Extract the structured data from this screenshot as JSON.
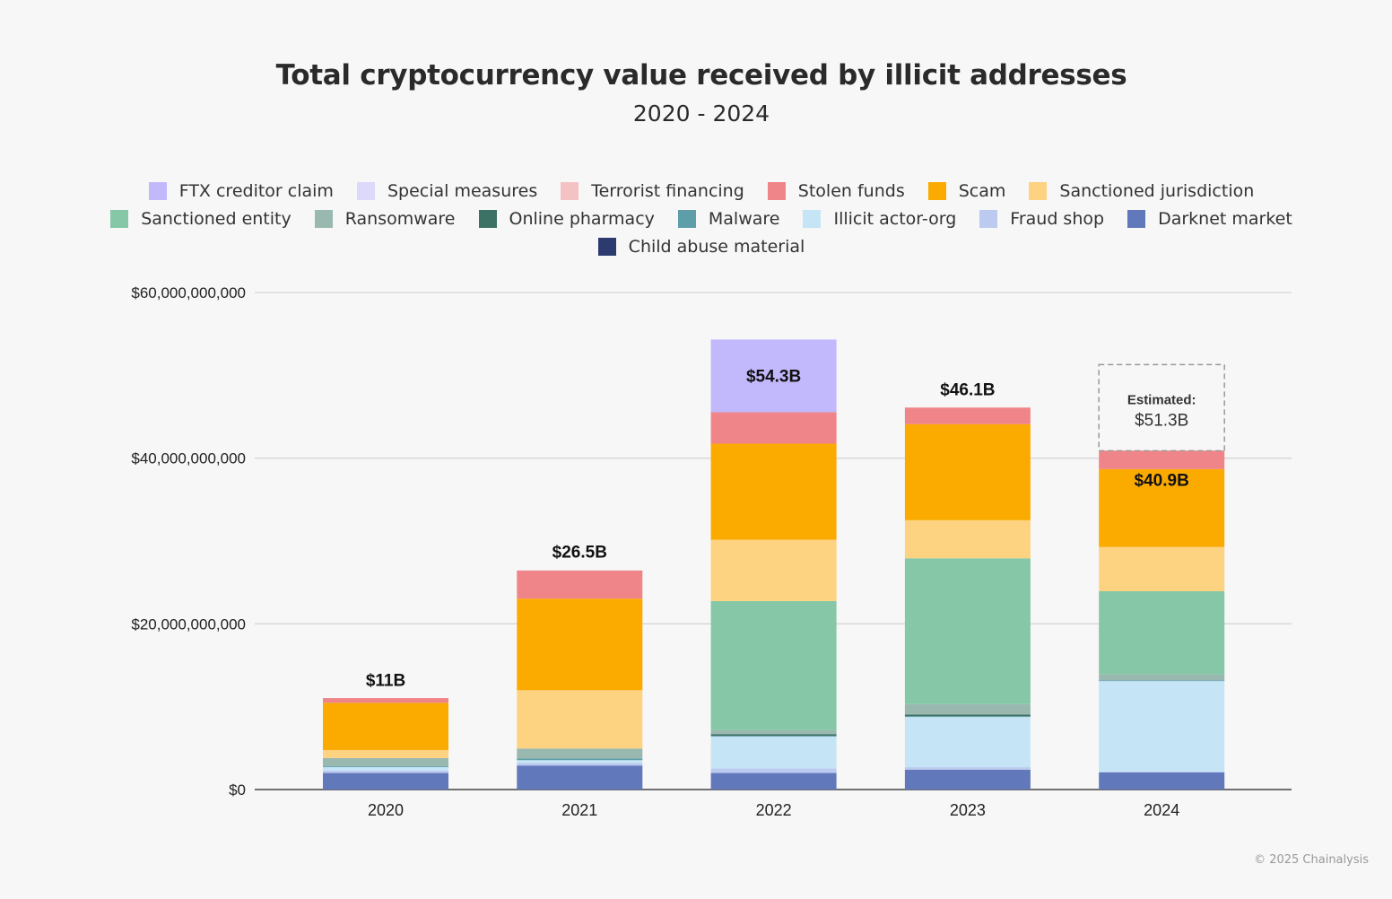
{
  "chart_data": {
    "type": "bar",
    "stacked": true,
    "title": "Total cryptocurrency value received by illicit addresses",
    "subtitle": "2020 - 2024",
    "xlabel": "",
    "ylabel": "",
    "ylim": [
      0,
      60000000000
    ],
    "yticks": [
      "$0",
      "$20,000,000,000",
      "$40,000,000,000",
      "$60,000,000,000"
    ],
    "ytick_values": [
      0,
      20000000000,
      40000000000,
      60000000000
    ],
    "grid": true,
    "legend_position": "top",
    "categories": [
      "2020",
      "2021",
      "2022",
      "2023",
      "2024"
    ],
    "units": "USD billions",
    "series": [
      {
        "name": "Darknet market",
        "color": "#6178bb",
        "values": [
          2.0,
          2.9,
          2.0,
          2.4,
          2.06
        ]
      },
      {
        "name": "Fraud shop",
        "color": "#bccaef",
        "values": [
          0.3,
          0.3,
          0.54,
          0.3,
          0.1
        ]
      },
      {
        "name": "Illicit actor-org",
        "color": "#c5e5f6",
        "values": [
          0.4,
          0.35,
          3.9,
          6.1,
          11.0
        ]
      },
      {
        "name": "Malware",
        "color": "#5e9ea8",
        "values": [
          0.1,
          0.2,
          0.05,
          0.05,
          0.02
        ]
      },
      {
        "name": "Online pharmacy",
        "color": "#3b7265",
        "values": [
          0.0,
          0.0,
          0.2,
          0.2,
          0.0
        ]
      },
      {
        "name": "Ransomware",
        "color": "#99b8b0",
        "values": [
          1.0,
          1.2,
          0.5,
          1.26,
          0.72
        ]
      },
      {
        "name": "Sanctioned entity",
        "color": "#85c7a6",
        "values": [
          0.0,
          0.0,
          15.56,
          17.6,
          10.04
        ]
      },
      {
        "name": "Sanctioned jurisdiction",
        "color": "#fdd281",
        "values": [
          0.97,
          7.04,
          7.4,
          4.6,
          5.34
        ]
      },
      {
        "name": "Scam",
        "color": "#fbab00",
        "values": [
          5.7,
          11.05,
          11.6,
          11.6,
          9.4
        ]
      },
      {
        "name": "Stolen funds",
        "color": "#ef8589",
        "values": [
          0.57,
          3.4,
          3.8,
          2.0,
          2.24
        ]
      },
      {
        "name": "Terrorist financing",
        "color": "#f5c2c4",
        "values": [
          0.0,
          0.0,
          0.0,
          0.0,
          0.0
        ]
      },
      {
        "name": "Special measures",
        "color": "#ddd9fb",
        "values": [
          0.0,
          0.0,
          0.0,
          0.0,
          0.0
        ]
      },
      {
        "name": "FTX creditor claim",
        "color": "#c2b8fc",
        "values": [
          0.0,
          0.0,
          8.77,
          0.0,
          0.0
        ]
      },
      {
        "name": "Child abuse material",
        "color": "#2c3a70",
        "values": [
          0.0,
          0.0,
          0.0,
          0.0,
          0.0
        ]
      }
    ],
    "totals": [
      {
        "label": "$11B",
        "value": 11.0
      },
      {
        "label": "$26.5B",
        "value": 26.5
      },
      {
        "label": "$54.3B",
        "value": 54.3
      },
      {
        "label": "$46.1B",
        "value": 46.1
      },
      {
        "label": "$40.9B",
        "value": 40.9
      }
    ],
    "estimate": {
      "category": "2024",
      "label_line1": "Estimated:",
      "label_line2": "$51.3B",
      "value": 51.3
    }
  },
  "legend": [
    {
      "name": "FTX creditor claim",
      "color": "#c2b8fc"
    },
    {
      "name": "Special measures",
      "color": "#ddd9fb"
    },
    {
      "name": "Terrorist financing",
      "color": "#f5c2c4"
    },
    {
      "name": "Stolen funds",
      "color": "#ef8589"
    },
    {
      "name": "Scam",
      "color": "#fbab00"
    },
    {
      "name": "Sanctioned jurisdiction",
      "color": "#fdd281"
    },
    {
      "name": "Sanctioned entity",
      "color": "#85c7a6"
    },
    {
      "name": "Ransomware",
      "color": "#99b8b0"
    },
    {
      "name": "Online pharmacy",
      "color": "#3b7265"
    },
    {
      "name": "Malware",
      "color": "#5e9ea8"
    },
    {
      "name": "Illicit actor-org",
      "color": "#c5e5f6"
    },
    {
      "name": "Fraud shop",
      "color": "#bccaef"
    },
    {
      "name": "Darknet market",
      "color": "#6178bb"
    },
    {
      "name": "Child abuse material",
      "color": "#2c3a70"
    }
  ],
  "copyright": "© 2025 Chainalysis"
}
